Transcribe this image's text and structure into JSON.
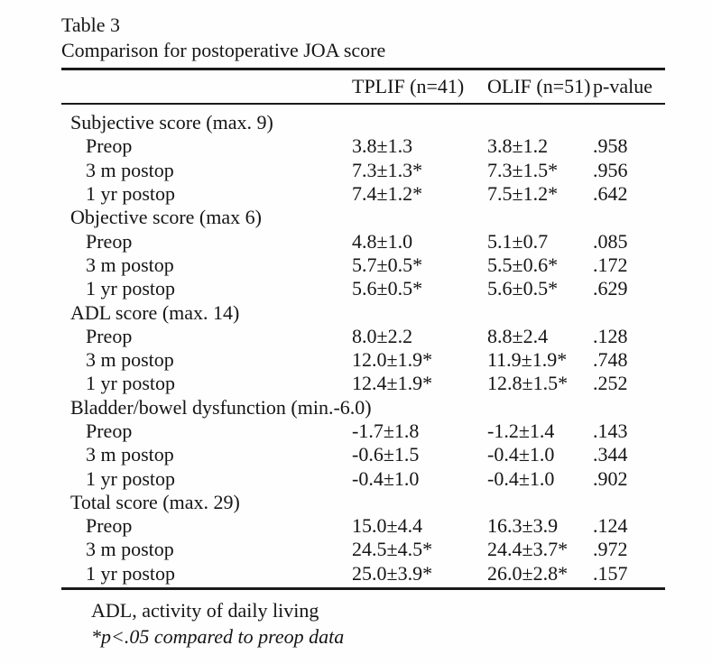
{
  "document": {
    "table_label": "Table 3",
    "caption": "Comparison for postoperative JOA score"
  },
  "table": {
    "header": {
      "row_label": "",
      "col1": "TPLIF (n=41)",
      "col2": "OLIF (n=51)",
      "col3": "p-value"
    },
    "sections": [
      {
        "title": "Subjective score (max. 9)",
        "rows": [
          {
            "label": "Preop",
            "tplif": "3.8±1.3",
            "olif": "3.8±1.2",
            "p_value": ".958"
          },
          {
            "label": "3 m postop",
            "tplif": "7.3±1.3*",
            "olif": "7.3±1.5*",
            "p_value": ".956"
          },
          {
            "label": "1 yr postop",
            "tplif": "7.4±1.2*",
            "olif": "7.5±1.2*",
            "p_value": ".642"
          }
        ]
      },
      {
        "title": "Objective score (max 6)",
        "rows": [
          {
            "label": "Preop",
            "tplif": "4.8±1.0",
            "olif": "5.1±0.7",
            "p_value": ".085"
          },
          {
            "label": "3 m postop",
            "tplif": "5.7±0.5*",
            "olif": "5.5±0.6*",
            "p_value": ".172"
          },
          {
            "label": "1 yr postop",
            "tplif": "5.6±0.5*",
            "olif": "5.6±0.5*",
            "p_value": ".629"
          }
        ]
      },
      {
        "title": "ADL score (max. 14)",
        "rows": [
          {
            "label": "Preop",
            "tplif": "8.0±2.2",
            "olif": "8.8±2.4",
            "p_value": ".128"
          },
          {
            "label": "3 m postop",
            "tplif": "12.0±1.9*",
            "olif": "11.9±1.9*",
            "p_value": ".748"
          },
          {
            "label": "1 yr postop",
            "tplif": "12.4±1.9*",
            "olif": "12.8±1.5*",
            "p_value": ".252"
          }
        ]
      },
      {
        "title": "Bladder/bowel dysfunction (min.-6.0)",
        "rows": [
          {
            "label": "Preop",
            "tplif": "-1.7±1.8",
            "olif": "-1.2±1.4",
            "p_value": ".143"
          },
          {
            "label": "3 m postop",
            "tplif": "-0.6±1.5",
            "olif": "-0.4±1.0",
            "p_value": ".344"
          },
          {
            "label": "1 yr postop",
            "tplif": "-0.4±1.0",
            "olif": "-0.4±1.0",
            "p_value": ".902"
          }
        ]
      },
      {
        "title": "Total score (max. 29)",
        "rows": [
          {
            "label": "Preop",
            "tplif": "15.0±4.4",
            "olif": "16.3±3.9",
            "p_value": ".124"
          },
          {
            "label": "3 m postop",
            "tplif": "24.5±4.5*",
            "olif": "24.4±3.7*",
            "p_value": ".972"
          },
          {
            "label": "1 yr postop",
            "tplif": "25.0±3.9*",
            "olif": "26.0±2.8*",
            "p_value": ".157"
          }
        ]
      }
    ]
  },
  "footnotes": {
    "abbreviation": "ADL, activity of daily living",
    "significance": "*p<.05 compared to preop data"
  },
  "colors": {
    "text": "#151515",
    "rule": "#1a1a1a",
    "background": "#fefefe"
  }
}
